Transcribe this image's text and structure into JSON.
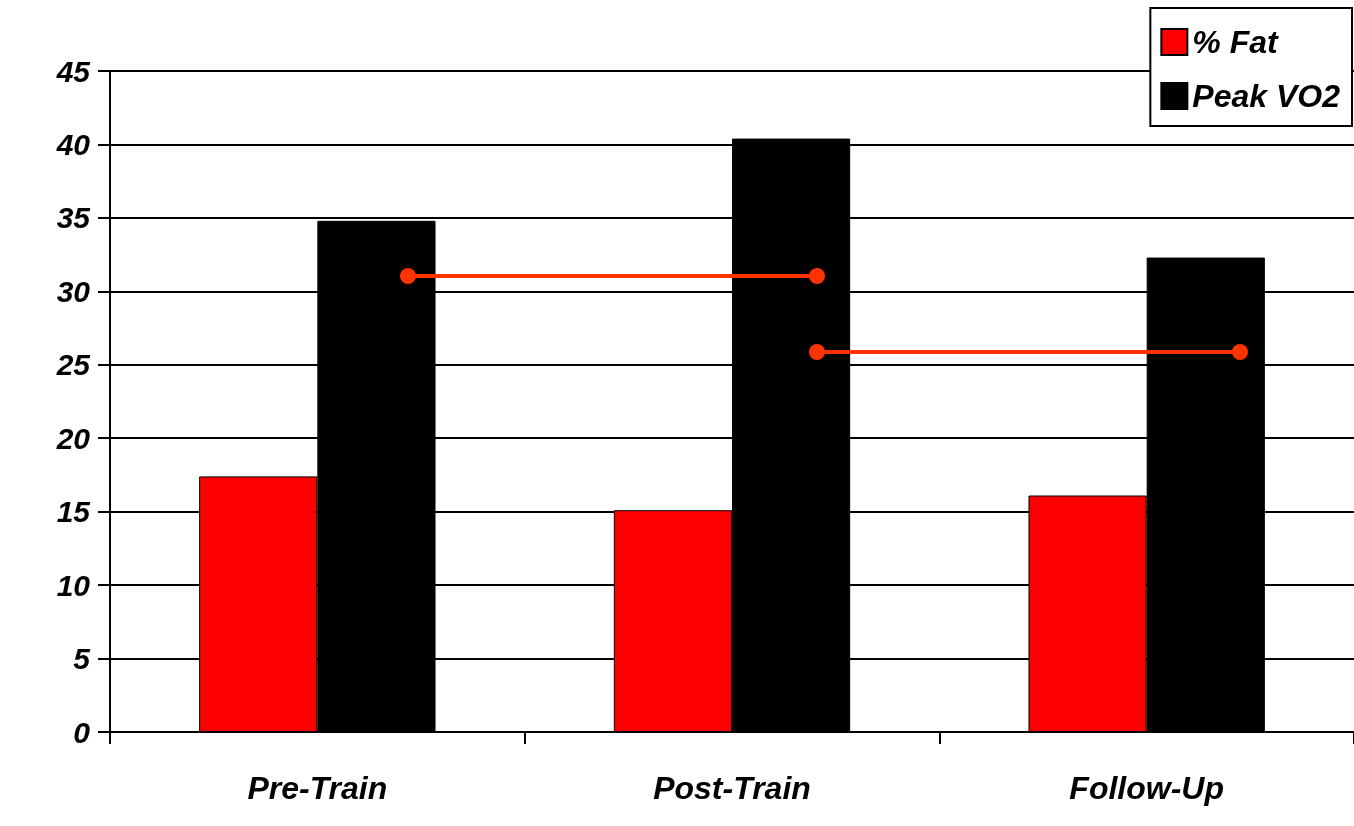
{
  "chart_data": {
    "type": "bar",
    "categories": [
      "Pre-Train",
      "Post-Train",
      "Follow-Up"
    ],
    "series": [
      {
        "name": "% Fat",
        "color": "#ff0000",
        "values": [
          17.4,
          15.1,
          16.1
        ]
      },
      {
        "name": "Peak VO2",
        "color": "#000000",
        "values": [
          34.8,
          40.4,
          32.3
        ]
      }
    ],
    "ylim": [
      0,
      45
    ],
    "yticks": [
      0,
      5,
      10,
      15,
      20,
      25,
      30,
      35,
      40,
      45
    ],
    "grid": "y",
    "legend": "top right"
  }
}
